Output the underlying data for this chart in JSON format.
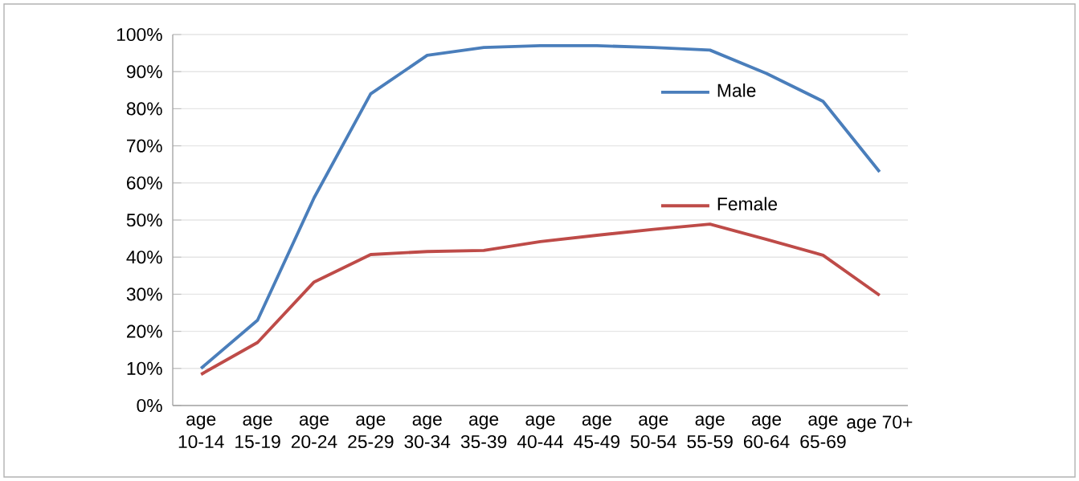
{
  "chart_data": {
    "type": "line",
    "categories": [
      "age 10-14",
      "age 15-19",
      "age 20-24",
      "age 25-29",
      "age 30-34",
      "age 35-39",
      "age 40-44",
      "age 45-49",
      "age 50-54",
      "age 55-59",
      "age 60-64",
      "age 65-69",
      "age 70+"
    ],
    "series": [
      {
        "name": "Male",
        "color": "#4a7ebb",
        "values": [
          10,
          23,
          56,
          84,
          94.4,
          96.5,
          97,
          97,
          96.5,
          95.8,
          89.5,
          82,
          63
        ]
      },
      {
        "name": "Female",
        "color": "#be4b48",
        "values": [
          8.4,
          17,
          33.3,
          40.7,
          41.5,
          41.8,
          44.2,
          45.9,
          47.5,
          48.9,
          44.8,
          40.5,
          29.7
        ]
      }
    ],
    "ylim": [
      0,
      100
    ],
    "yticks": [
      {
        "value": 0,
        "label": "0%"
      },
      {
        "value": 10,
        "label": "10%"
      },
      {
        "value": 20,
        "label": "20%"
      },
      {
        "value": 30,
        "label": "30%"
      },
      {
        "value": 40,
        "label": "40%"
      },
      {
        "value": 50,
        "label": "50%"
      },
      {
        "value": 60,
        "label": "60%"
      },
      {
        "value": 70,
        "label": "70%"
      },
      {
        "value": 80,
        "label": "80%"
      },
      {
        "value": 90,
        "label": "90%"
      },
      {
        "value": 100,
        "label": "100%"
      }
    ],
    "grid": "y",
    "legend": "top right",
    "marker": "none",
    "line_style": "solid"
  }
}
